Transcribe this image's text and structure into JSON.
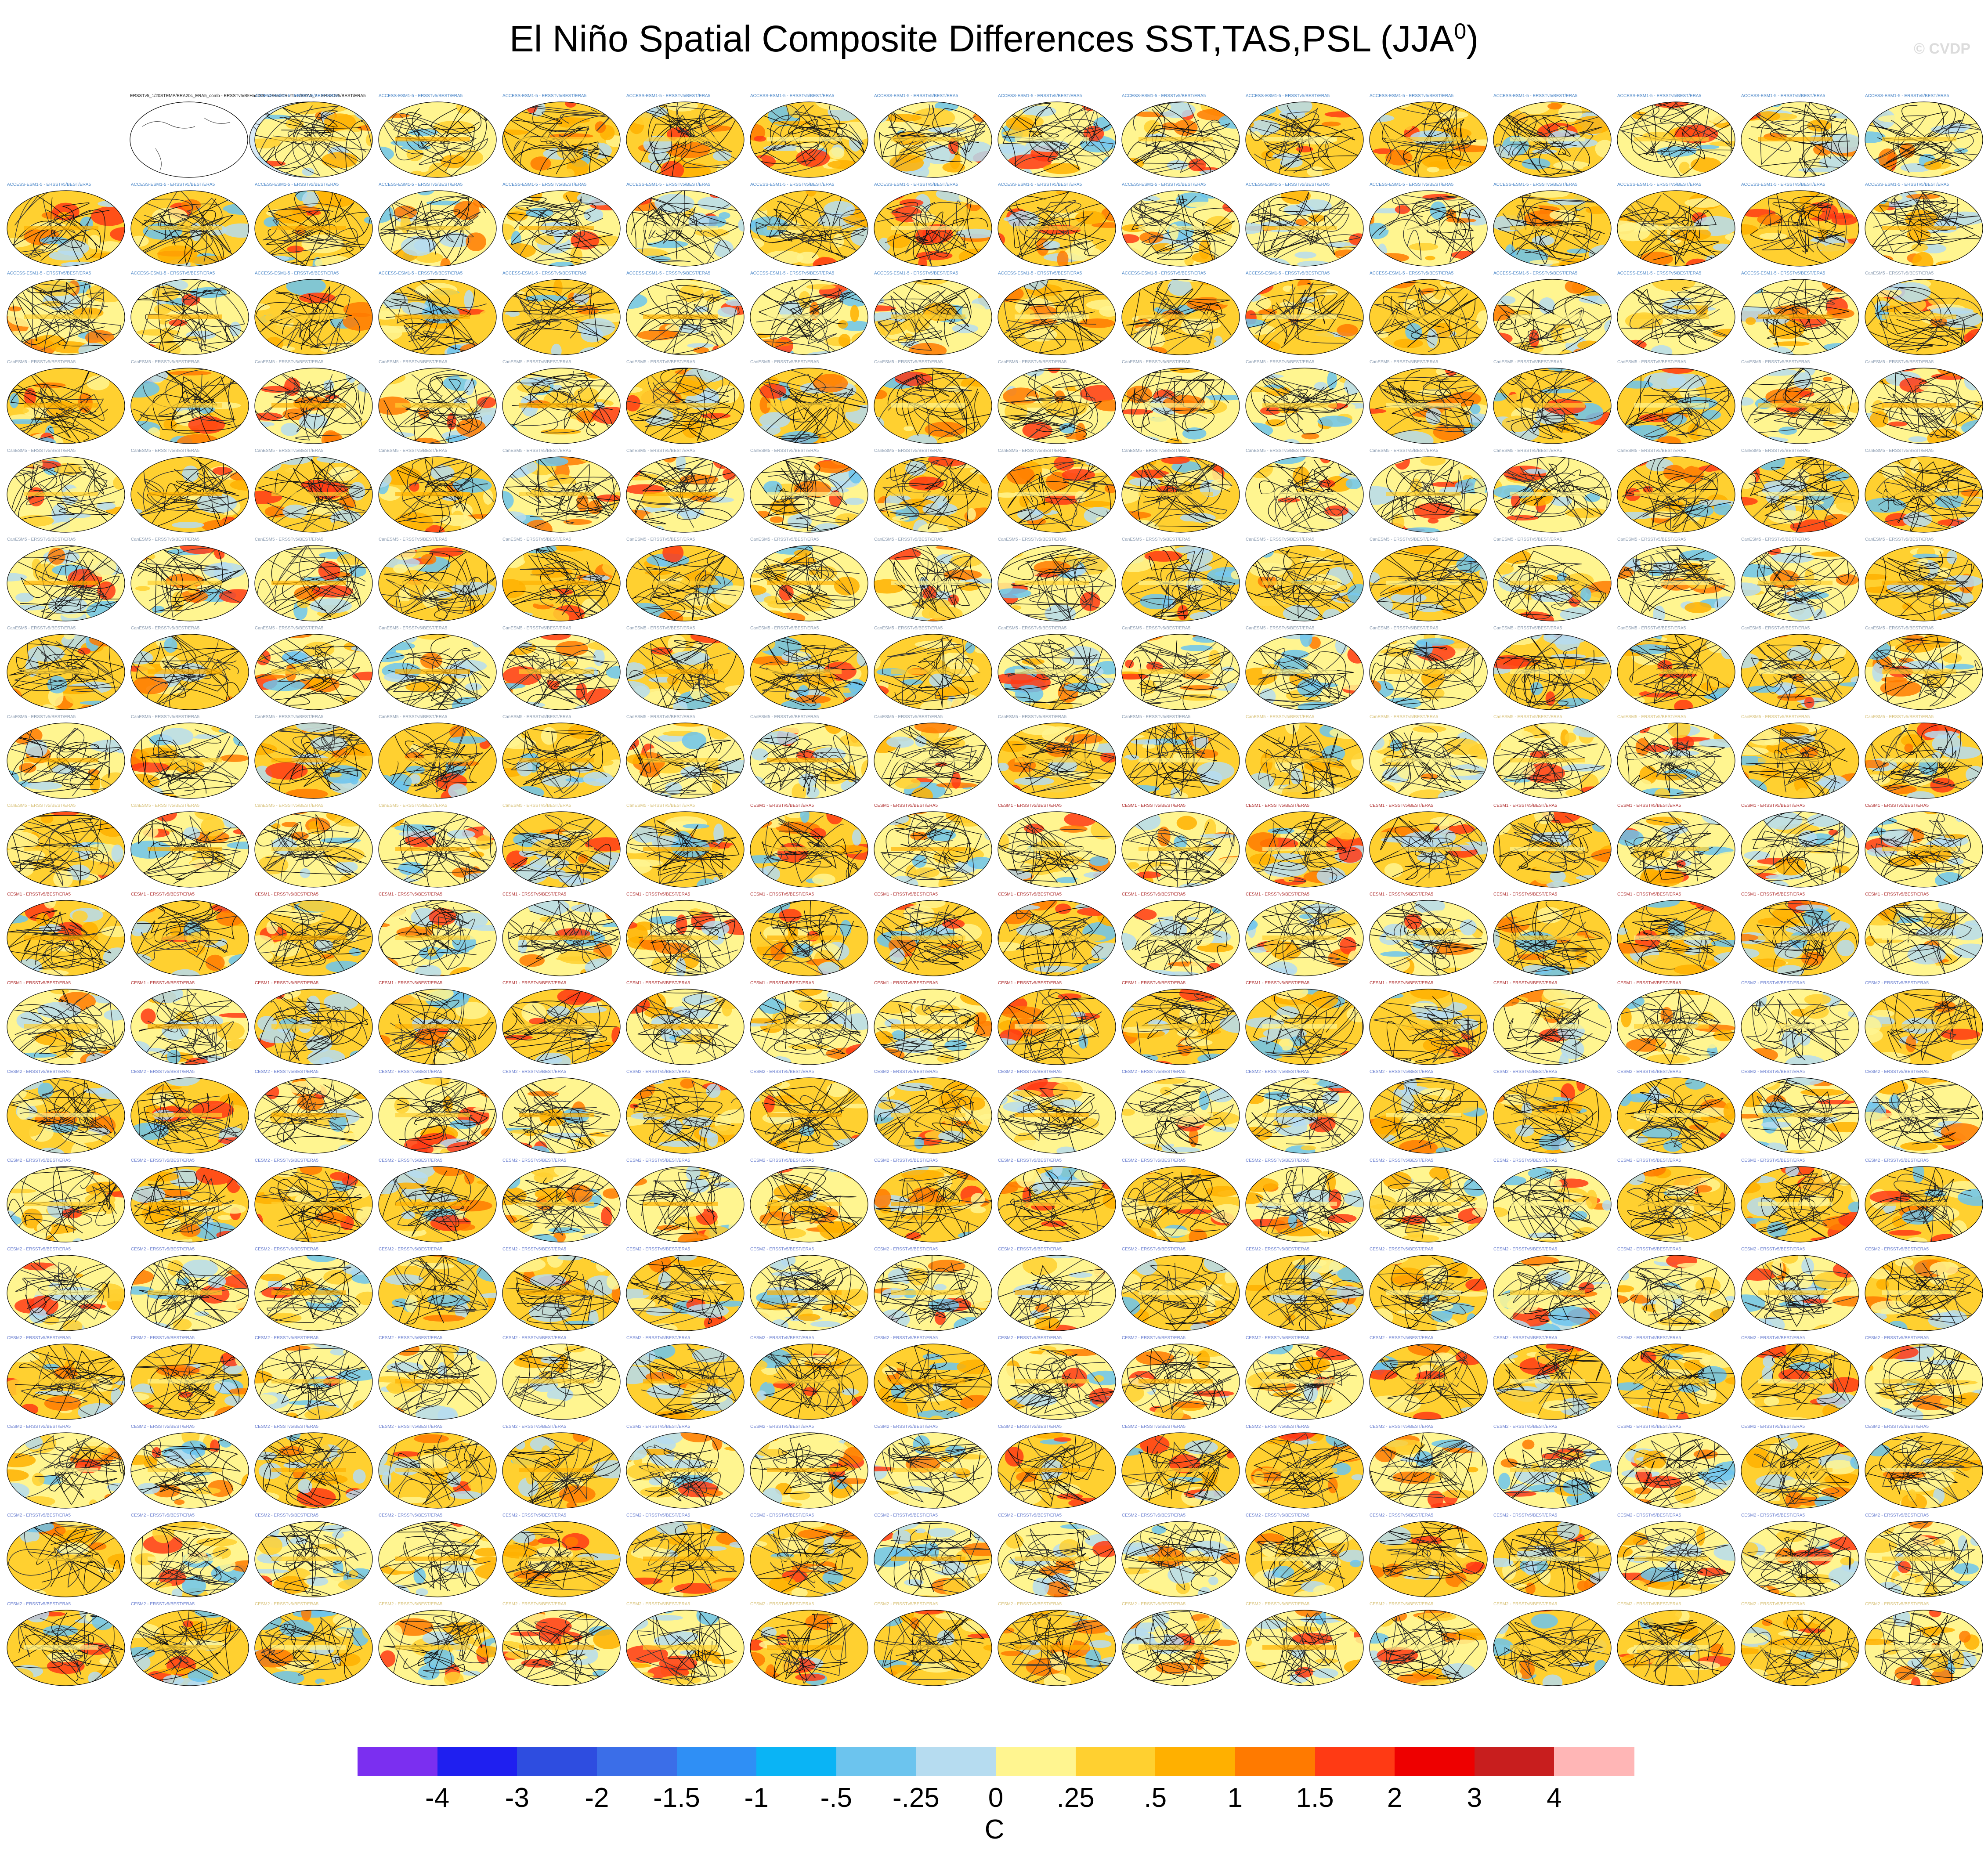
{
  "figure": {
    "title_main": "El Niño Spatial Composite Differences SST,TAS,PSL (JJA",
    "title_sup": "0",
    "title_end": ")",
    "watermark": "© CVDP"
  },
  "chart_data": {
    "type": "heatmap",
    "layout": {
      "rows": 18,
      "cols": 16
    },
    "panel_title_suffix": " - ERSSTv5/BEST/ERA5",
    "panels": [
      {
        "label": "ERSSTv5_1/20STEMP/ERA20c_ERA5_comb - ERSSTv5/BEST/ERA5",
        "kind": "obs1"
      },
      {
        "label": "HadISSTv1/HadCRUT5.0/ERA5_2 - ERSSTv5/BEST/ERA5",
        "kind": "obs2"
      }
    ],
    "model_groups": [
      {
        "name": "ACCESS-ESM1-5",
        "count": 45,
        "color": "#4a86c8"
      },
      {
        "name": "CanESM5",
        "count": 75,
        "color": "#8a9bb0"
      },
      {
        "name": "CanESM5",
        "count": 12,
        "color": "#d8c27a"
      },
      {
        "name": "CESM1",
        "count": 40,
        "color": "#b03030"
      },
      {
        "name": "CESM2",
        "count": 100,
        "color": "#6a7fd0"
      },
      {
        "name": "CESM2",
        "count": 14,
        "color": "#d8c27a"
      }
    ],
    "colorbar": {
      "colors": [
        "#7b2ff0",
        "#1f1ff0",
        "#2e4de0",
        "#3b6ee8",
        "#2f8ff5",
        "#0ab4f5",
        "#6cc4ee",
        "#b6dcf0",
        "#fff590",
        "#ffd030",
        "#ffb000",
        "#ff7a00",
        "#ff3a14",
        "#ee0000",
        "#c81e1e",
        "#ffb6b6"
      ],
      "tick_labels": [
        "-4",
        "-3",
        "-2",
        "-1.5",
        "-1",
        "-.5",
        "-.25",
        "0",
        ".25",
        ".5",
        "1",
        "1.5",
        "2",
        "3",
        "4"
      ],
      "levels": [
        -4,
        -3,
        -2,
        -1.5,
        -1,
        -0.5,
        -0.25,
        0,
        0.25,
        0.5,
        1,
        1.5,
        2,
        3,
        4
      ],
      "units": "C"
    }
  }
}
